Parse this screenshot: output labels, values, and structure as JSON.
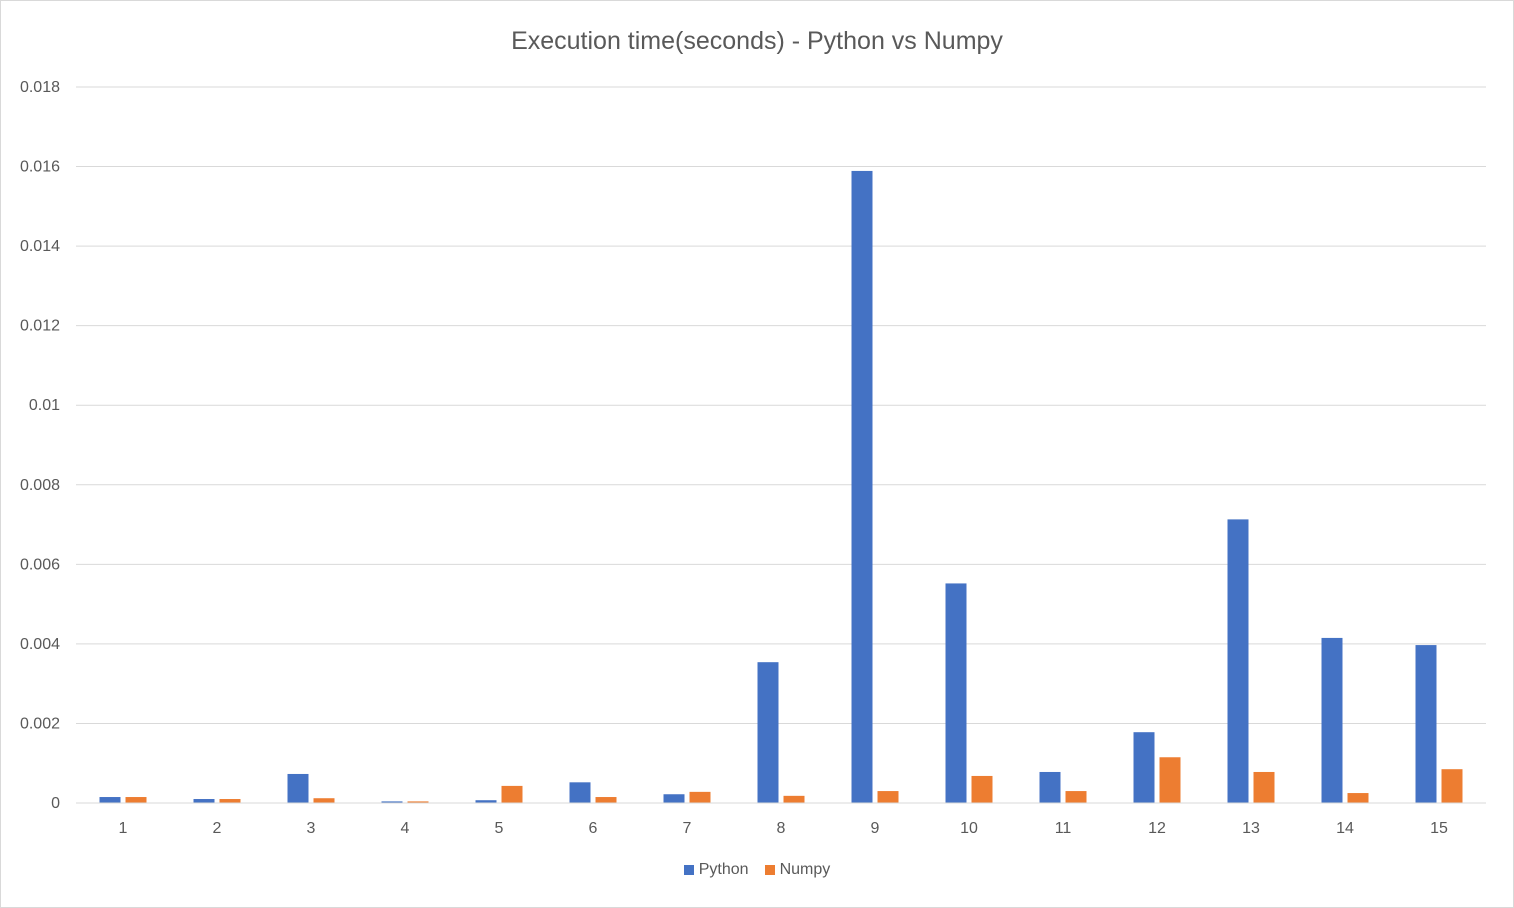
{
  "chart_data": {
    "type": "bar",
    "title": "Execution time(seconds) - Python vs Numpy",
    "xlabel": "",
    "ylabel": "",
    "categories": [
      "1",
      "2",
      "3",
      "4",
      "5",
      "6",
      "7",
      "8",
      "9",
      "10",
      "11",
      "12",
      "13",
      "14",
      "15"
    ],
    "series": [
      {
        "name": "Python",
        "color": "#4472c4",
        "values": [
          0.00015,
          0.0001,
          0.00073,
          4e-05,
          7e-05,
          0.00052,
          0.00022,
          0.00354,
          0.01589,
          0.00552,
          0.00078,
          0.00178,
          0.00713,
          0.00415,
          0.00397
        ]
      },
      {
        "name": "Numpy",
        "color": "#ed7d31",
        "values": [
          0.00015,
          0.0001,
          0.00012,
          4e-05,
          0.00043,
          0.00015,
          0.00028,
          0.00018,
          0.0003,
          0.00068,
          0.0003,
          0.00115,
          0.00078,
          0.00025,
          0.00085
        ]
      }
    ],
    "ylim": [
      0,
      0.018
    ],
    "yticks": [
      "0",
      "0.002",
      "0.004",
      "0.006",
      "0.008",
      "0.01",
      "0.012",
      "0.014",
      "0.016",
      "0.018"
    ],
    "grid": true,
    "legend_position": "bottom"
  }
}
